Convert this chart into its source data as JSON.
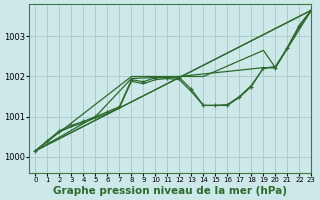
{
  "bg_color": "#cce8e8",
  "grid_color": "#aacccc",
  "line_color": "#2d6a2d",
  "marker_color": "#2d6a2d",
  "xlabel": "Graphe pression niveau de la mer (hPa)",
  "xlabel_fontsize": 7.5,
  "xlim": [
    -0.5,
    23
  ],
  "ylim": [
    999.6,
    1003.8
  ],
  "yticks": [
    1000,
    1001,
    1002,
    1003
  ],
  "xticks": [
    0,
    1,
    2,
    3,
    4,
    5,
    6,
    7,
    8,
    9,
    10,
    11,
    12,
    13,
    14,
    15,
    16,
    17,
    18,
    19,
    20,
    21,
    22,
    23
  ],
  "series": [
    {
      "x": [
        0,
        23
      ],
      "y": [
        1000.15,
        1003.65
      ],
      "marker": false,
      "lw": 0.9
    },
    {
      "x": [
        0,
        23
      ],
      "y": [
        1000.15,
        1003.65
      ],
      "marker": false,
      "lw": 0.9
    },
    {
      "x": [
        0,
        1,
        2,
        3,
        4,
        5,
        6,
        7,
        8,
        9,
        10,
        11,
        12,
        13,
        14,
        15,
        16,
        17,
        18,
        19,
        20,
        21,
        22,
        23
      ],
      "y": [
        1000.15,
        1000.4,
        1000.65,
        1000.78,
        1000.88,
        1001.0,
        1001.12,
        1001.25,
        1001.92,
        1001.87,
        1001.97,
        1001.97,
        1001.97,
        1001.68,
        1001.28,
        1001.28,
        1001.28,
        1001.48,
        1001.75,
        1002.22,
        1002.22,
        1002.72,
        1003.25,
        1003.65
      ],
      "marker": true,
      "lw": 0.9
    },
    {
      "x": [
        0,
        1,
        2,
        3,
        4,
        5,
        6,
        7,
        8,
        9,
        10,
        11,
        12,
        13,
        14,
        15,
        16,
        17,
        18,
        19,
        20,
        21,
        22,
        23
      ],
      "y": [
        1000.15,
        1000.4,
        1000.62,
        1000.75,
        1000.85,
        1000.97,
        1001.08,
        1001.22,
        1001.88,
        1001.82,
        1001.92,
        1001.95,
        1001.92,
        1001.62,
        1001.28,
        1001.28,
        1001.3,
        1001.5,
        1001.78,
        1002.2,
        1002.25,
        1002.7,
        1003.25,
        1003.65
      ],
      "marker": false,
      "lw": 0.9
    },
    {
      "x": [
        0,
        5,
        8,
        12,
        19,
        20,
        23
      ],
      "y": [
        1000.15,
        1001.0,
        1001.95,
        1002.0,
        1002.22,
        1002.22,
        1003.65
      ],
      "marker": false,
      "lw": 0.9
    },
    {
      "x": [
        0,
        8,
        12,
        14,
        19,
        20,
        21,
        22,
        23
      ],
      "y": [
        1000.15,
        1002.0,
        1002.0,
        1002.0,
        1002.65,
        1002.22,
        1002.72,
        1003.28,
        1003.65
      ],
      "marker": false,
      "lw": 0.9
    }
  ]
}
